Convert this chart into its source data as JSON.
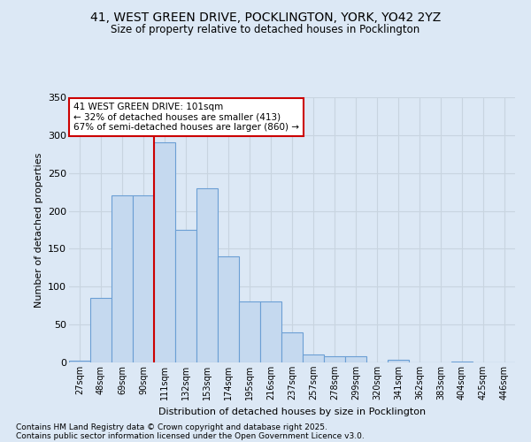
{
  "title_line1": "41, WEST GREEN DRIVE, POCKLINGTON, YORK, YO42 2YZ",
  "title_line2": "Size of property relative to detached houses in Pocklington",
  "xlabel": "Distribution of detached houses by size in Pocklington",
  "ylabel": "Number of detached properties",
  "categories": [
    "27sqm",
    "48sqm",
    "69sqm",
    "90sqm",
    "111sqm",
    "132sqm",
    "153sqm",
    "174sqm",
    "195sqm",
    "216sqm",
    "237sqm",
    "257sqm",
    "278sqm",
    "299sqm",
    "320sqm",
    "341sqm",
    "362sqm",
    "383sqm",
    "404sqm",
    "425sqm",
    "446sqm"
  ],
  "values": [
    2,
    85,
    220,
    220,
    290,
    175,
    230,
    140,
    80,
    80,
    40,
    10,
    8,
    8,
    0,
    4,
    0,
    0,
    1,
    0,
    0
  ],
  "bar_color": "#c5d9ef",
  "bar_edge_color": "#6b9fd4",
  "vline_x_index": 4,
  "vline_color": "#cc0000",
  "annotation_text": "41 WEST GREEN DRIVE: 101sqm\n← 32% of detached houses are smaller (413)\n67% of semi-detached houses are larger (860) →",
  "annotation_box_color": "white",
  "annotation_box_edge": "#cc0000",
  "ylim": [
    0,
    350
  ],
  "yticks": [
    0,
    50,
    100,
    150,
    200,
    250,
    300,
    350
  ],
  "grid_color": "#c8d4e0",
  "bg_color": "#dce8f5",
  "footnote_line1": "Contains HM Land Registry data © Crown copyright and database right 2025.",
  "footnote_line2": "Contains public sector information licensed under the Open Government Licence v3.0."
}
